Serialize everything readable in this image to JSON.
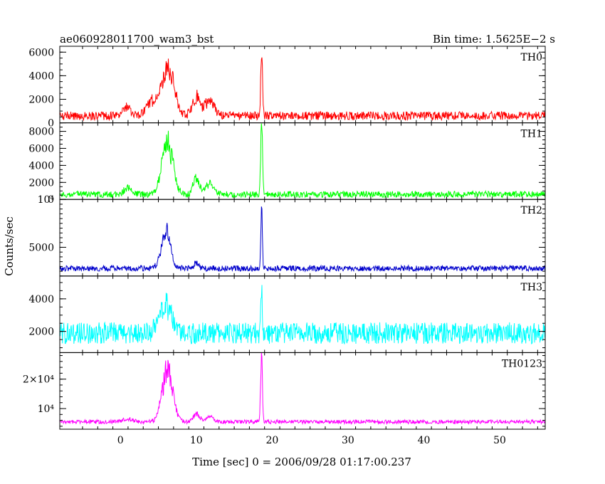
{
  "header": {
    "title": "ae060928011700_wam3_bst",
    "bin_time": "Bin time: 1.5625E−2 s"
  },
  "chart_data": {
    "type": "line",
    "xlabel": "Time [sec] 0 = 2006/09/28 01:17:00.237",
    "ylabel": "Counts/sec",
    "xlim": [
      -8,
      56
    ],
    "x_ticks": [
      0,
      10,
      20,
      30,
      40,
      50
    ],
    "x_tick_labels": [
      "0",
      "10",
      "20",
      "30",
      "40",
      "50"
    ],
    "panels": [
      {
        "name": "TH0",
        "color": "#ff0000",
        "ylim": [
          0,
          6500
        ],
        "y_ticks": [
          0,
          2000,
          4000,
          6000
        ],
        "y_tick_labels": [
          "0",
          "2000",
          "4000",
          "6000"
        ],
        "baseline": 600,
        "noise": 300,
        "events": [
          [
            0.8,
            700,
            0.5
          ],
          [
            4.2,
            1200,
            0.8
          ],
          [
            6.3,
            3900,
            0.8
          ],
          [
            10.0,
            1500,
            0.5
          ],
          [
            11.7,
            1300,
            0.6
          ],
          [
            18.6,
            5200,
            0.12
          ]
        ]
      },
      {
        "name": "TH1",
        "color": "#00ff00",
        "ylim": [
          0,
          9000
        ],
        "y_ticks": [
          0,
          2000,
          4000,
          6000,
          8000
        ],
        "y_tick_labels": [
          "0",
          "2000",
          "4000",
          "6000",
          "8000"
        ],
        "baseline": 600,
        "noise": 300,
        "events": [
          [
            1.0,
            800,
            0.5
          ],
          [
            6.2,
            6200,
            0.7
          ],
          [
            10.0,
            2000,
            0.4
          ],
          [
            11.8,
            1300,
            0.5
          ],
          [
            18.6,
            8300,
            0.12
          ]
        ]
      },
      {
        "name": "TH2",
        "color": "#0000cc",
        "ylim": [
          2000,
          10000
        ],
        "y_ticks": [
          5000,
          10000
        ],
        "y_tick_labels": [
          "5000",
          "10⁴"
        ],
        "baseline": 2800,
        "noise": 250,
        "events": [
          [
            6.0,
            3800,
            0.6
          ],
          [
            10.0,
            600,
            0.3
          ],
          [
            18.6,
            6800,
            0.1
          ]
        ]
      },
      {
        "name": "TH3",
        "color": "#00ffff",
        "ylim": [
          700,
          5400
        ],
        "y_ticks": [
          2000,
          4000
        ],
        "y_tick_labels": [
          "2000",
          "4000"
        ],
        "baseline": 1900,
        "noise": 550,
        "events": [
          [
            6.0,
            1700,
            0.8
          ],
          [
            18.6,
            2500,
            0.1
          ]
        ]
      },
      {
        "name": "TH0123",
        "color": "#ff00ff",
        "ylim": [
          3000,
          29000
        ],
        "y_ticks": [
          10000,
          20000
        ],
        "y_tick_labels": [
          "10⁴",
          "2×10⁴"
        ],
        "baseline": 5500,
        "noise": 550,
        "events": [
          [
            1.0,
            900,
            0.6
          ],
          [
            6.2,
            17500,
            0.7
          ],
          [
            10.0,
            3000,
            0.4
          ],
          [
            11.8,
            2000,
            0.5
          ],
          [
            18.6,
            22500,
            0.12
          ]
        ]
      }
    ]
  }
}
